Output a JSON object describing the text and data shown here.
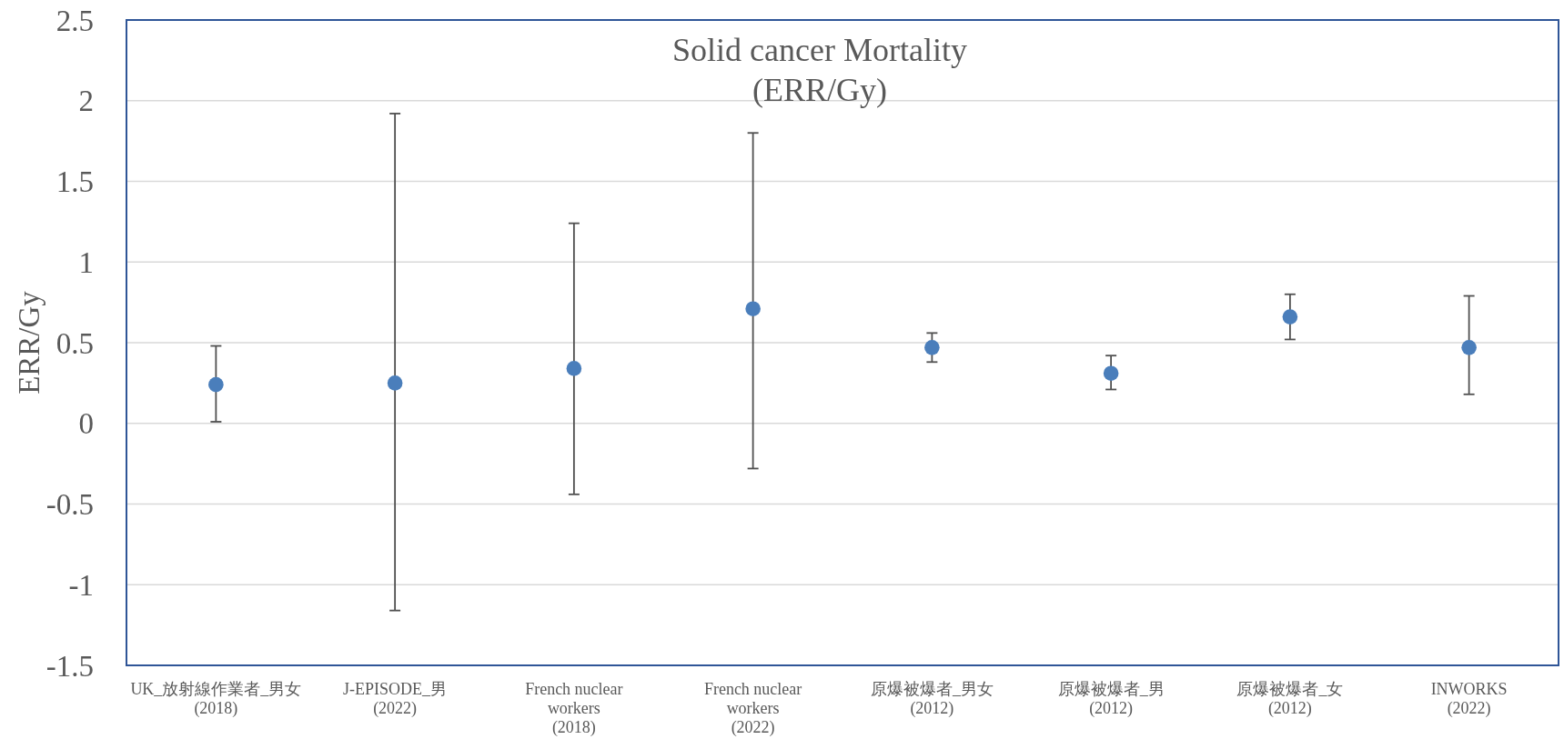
{
  "chart_data": {
    "type": "scatter",
    "title": "Solid cancer Mortality\n(ERR/Gy)",
    "ylabel": "ERR/Gy",
    "categories": [
      "UK_放射線作業者_男女\n(2018)",
      "J-EPISODE_男\n(2022)",
      "French nuclear\nworkers\n(2018)",
      "French nuclear\nworkers\n(2022)",
      "原爆被爆者_男女\n(2012)",
      "原爆被爆者_男\n(2012)",
      "原爆被爆者_女\n(2012)",
      "INWORKS\n(2022)"
    ],
    "values": [
      0.24,
      0.25,
      0.34,
      0.71,
      0.47,
      0.31,
      0.66,
      0.47
    ],
    "errors": [
      [
        0.01,
        0.48
      ],
      [
        -1.16,
        1.92
      ],
      [
        -0.44,
        1.24
      ],
      [
        -0.28,
        1.8
      ],
      [
        0.38,
        0.56
      ],
      [
        0.21,
        0.42
      ],
      [
        0.52,
        0.8
      ],
      [
        0.18,
        0.79
      ]
    ],
    "color": "#4a7ebb",
    "marker": "circle",
    "ylim": [
      -1.5,
      2.5
    ],
    "yticks": [
      -1.5,
      -1,
      -0.5,
      0,
      0.5,
      1,
      1.5,
      2,
      2.5
    ],
    "grid": "y"
  }
}
